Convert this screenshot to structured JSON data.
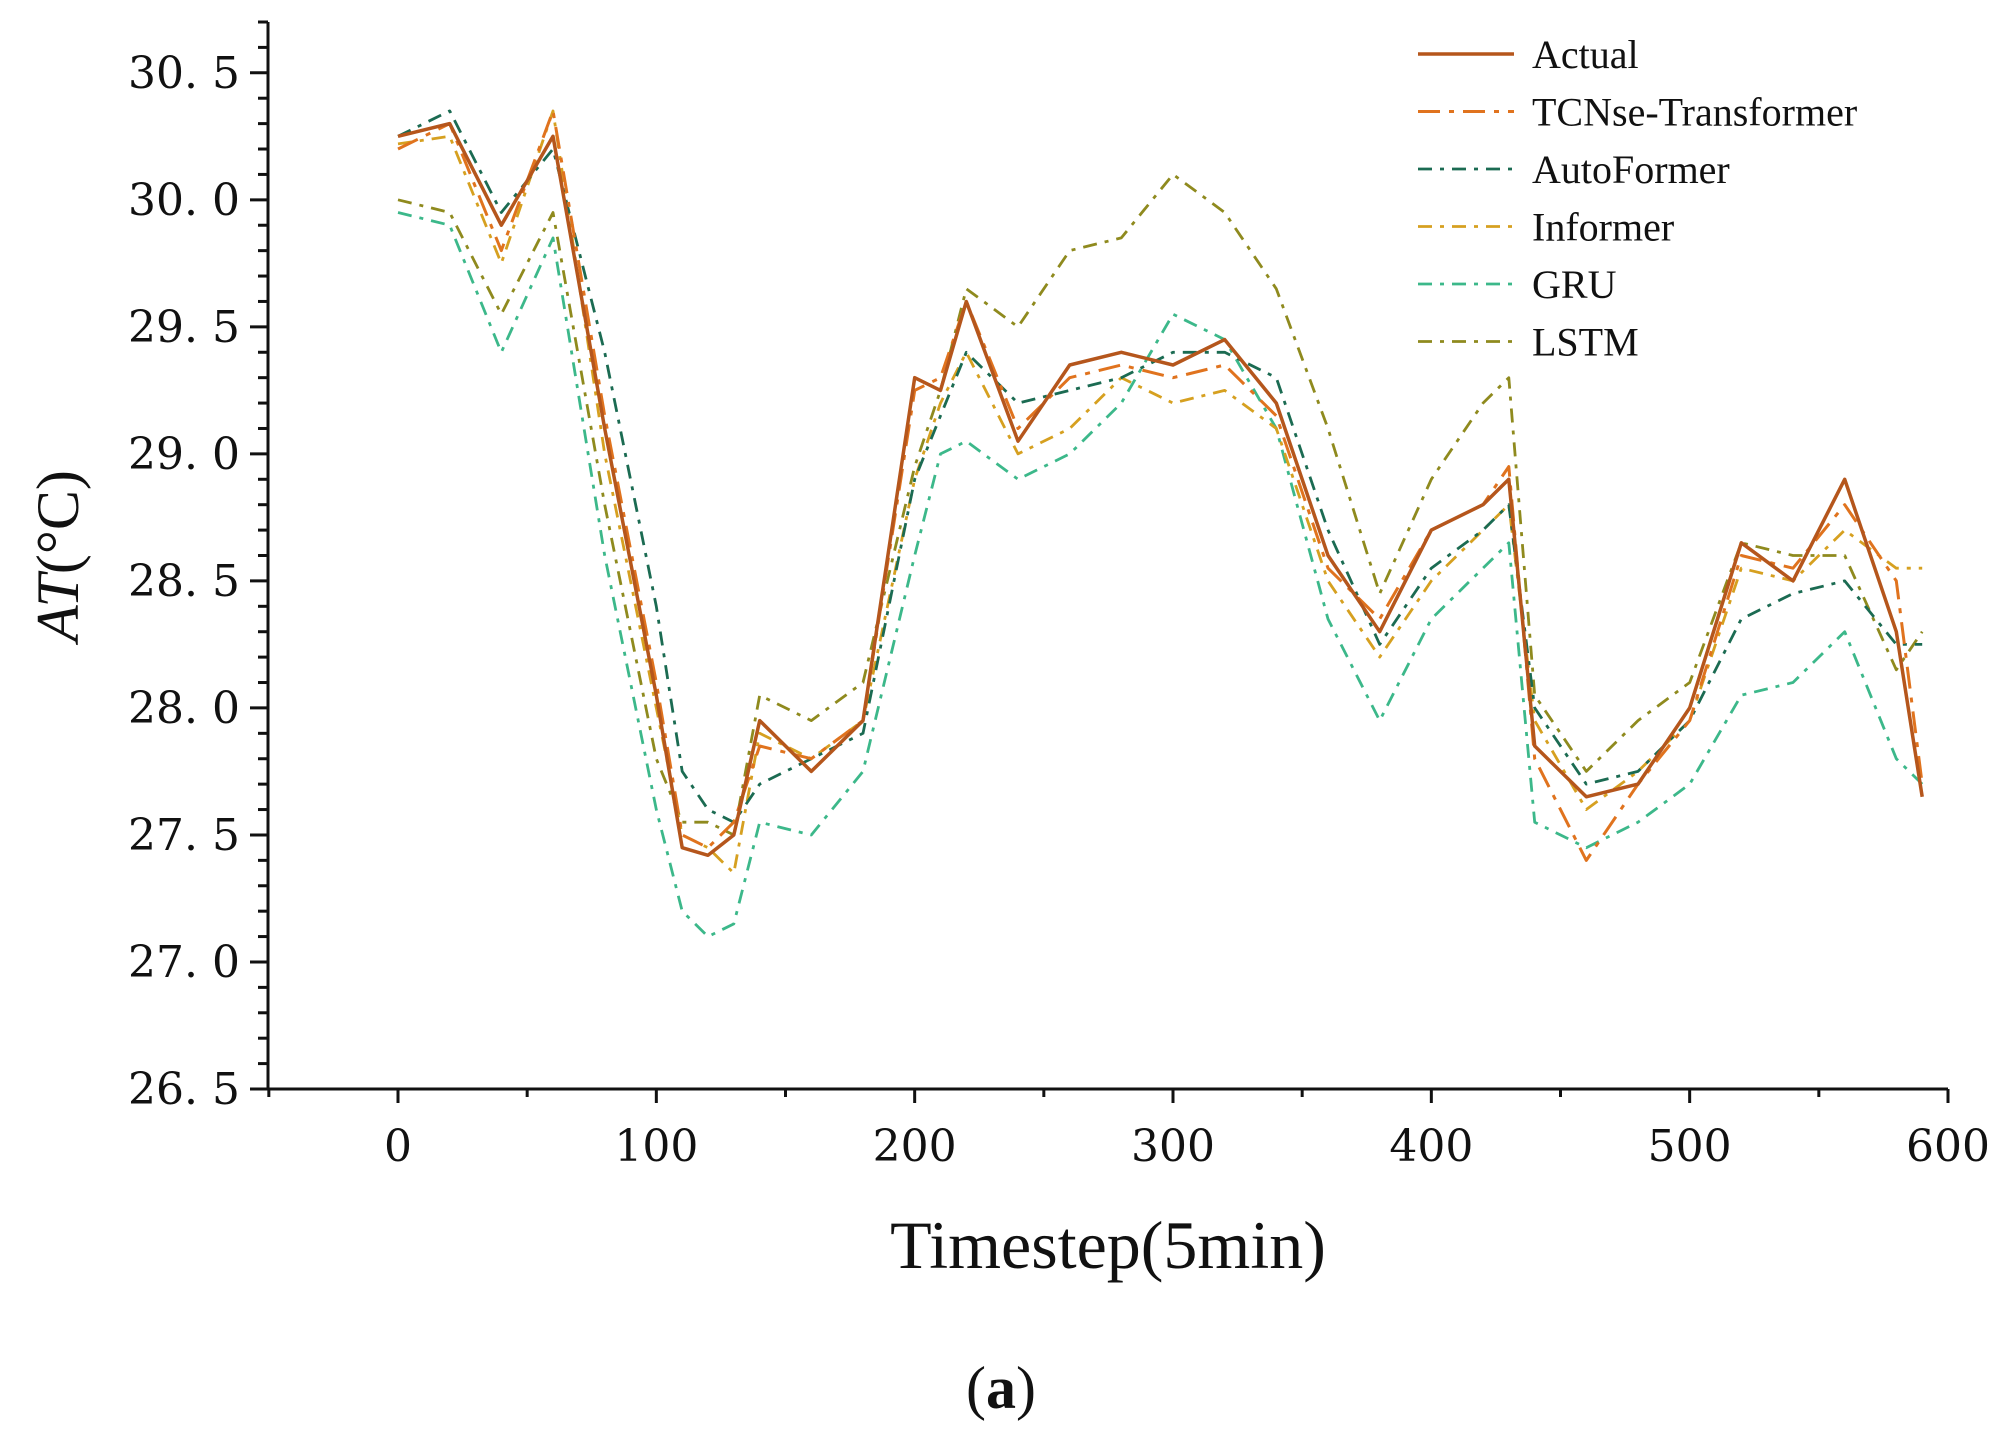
{
  "panel_label": {
    "open": "(",
    "letter": "a",
    "close": ")"
  },
  "chart_data": {
    "type": "line",
    "title": "",
    "xlabel": "Timestep(5min)",
    "ylabel": "AT(°C)",
    "ylabel_italic": "AT",
    "ylabel_unit": "(°C)",
    "xlim": [
      -50,
      600
    ],
    "ylim": [
      26.5,
      30.7
    ],
    "x_ticks": [
      0,
      100,
      200,
      300,
      400,
      500,
      600
    ],
    "y_ticks": [
      26.5,
      27.0,
      27.5,
      28.0,
      28.5,
      29.0,
      29.5,
      30.0,
      30.5
    ],
    "y_tick_labels": [
      "26. 5",
      "27. 0",
      "27. 5",
      "28. 0",
      "28. 5",
      "29. 0",
      "29. 5",
      "30. 0",
      "30. 5"
    ],
    "legend_position": "top-right",
    "grid": false,
    "x": [
      0,
      20,
      40,
      60,
      80,
      100,
      110,
      120,
      130,
      140,
      160,
      180,
      200,
      210,
      220,
      240,
      260,
      280,
      300,
      320,
      340,
      360,
      380,
      400,
      420,
      430,
      440,
      460,
      480,
      500,
      520,
      540,
      560,
      580,
      590
    ],
    "series": [
      {
        "name": "Actual",
        "color": "#b5561c",
        "dash": "solid",
        "width": 3.5,
        "values": [
          30.25,
          30.3,
          29.9,
          30.25,
          29.1,
          28.05,
          27.45,
          27.42,
          27.5,
          27.95,
          27.75,
          27.95,
          29.3,
          29.25,
          29.6,
          29.05,
          29.35,
          29.4,
          29.35,
          29.45,
          29.2,
          28.6,
          28.3,
          28.7,
          28.8,
          28.9,
          27.85,
          27.65,
          27.7,
          28.0,
          28.65,
          28.5,
          28.9,
          28.3,
          27.65
        ]
      },
      {
        "name": "TCNse-Transformer",
        "color": "#e0731e",
        "dash": "22 9 5 9",
        "width": 3,
        "values": [
          30.2,
          30.3,
          29.8,
          30.35,
          29.15,
          28.1,
          27.5,
          27.45,
          27.55,
          27.85,
          27.8,
          27.95,
          29.25,
          29.3,
          29.6,
          29.1,
          29.3,
          29.35,
          29.3,
          29.35,
          29.15,
          28.55,
          28.35,
          28.7,
          28.8,
          28.95,
          27.8,
          27.4,
          27.7,
          27.95,
          28.6,
          28.55,
          28.8,
          28.5,
          27.7
        ]
      },
      {
        "name": "AutoFormer",
        "color": "#1b6b52",
        "dash": "14 8 4 8",
        "width": 2.8,
        "values": [
          30.25,
          30.35,
          29.95,
          30.2,
          29.4,
          28.4,
          27.75,
          27.6,
          27.55,
          27.7,
          27.8,
          27.9,
          28.9,
          29.15,
          29.4,
          29.2,
          29.25,
          29.3,
          29.4,
          29.4,
          29.3,
          28.7,
          28.25,
          28.55,
          28.7,
          28.8,
          28.0,
          27.7,
          27.75,
          27.95,
          28.35,
          28.45,
          28.5,
          28.25,
          28.25
        ]
      },
      {
        "name": "Informer",
        "color": "#d6a020",
        "dash": "14 8 4 8",
        "width": 2.8,
        "values": [
          30.22,
          30.25,
          29.75,
          30.35,
          29.0,
          28.0,
          27.5,
          27.45,
          27.35,
          27.9,
          27.8,
          27.95,
          28.9,
          29.2,
          29.4,
          29.0,
          29.1,
          29.3,
          29.2,
          29.25,
          29.1,
          28.5,
          28.2,
          28.5,
          28.7,
          28.8,
          27.95,
          27.6,
          27.75,
          27.95,
          28.55,
          28.5,
          28.7,
          28.55,
          28.55
        ]
      },
      {
        "name": "GRU",
        "color": "#3cb88a",
        "dash": "14 8 4 8",
        "width": 2.8,
        "values": [
          29.95,
          29.9,
          29.4,
          29.85,
          28.6,
          27.6,
          27.2,
          27.1,
          27.15,
          27.55,
          27.5,
          27.75,
          28.6,
          29.0,
          29.05,
          28.9,
          29.0,
          29.2,
          29.55,
          29.45,
          29.1,
          28.35,
          27.95,
          28.35,
          28.55,
          28.65,
          27.55,
          27.45,
          27.55,
          27.7,
          28.05,
          28.1,
          28.3,
          27.8,
          27.7
        ]
      },
      {
        "name": "LSTM",
        "color": "#8f8a1e",
        "dash": "14 8 4 8",
        "width": 2.8,
        "values": [
          30.0,
          29.95,
          29.55,
          29.95,
          28.8,
          27.8,
          27.55,
          27.55,
          27.5,
          28.05,
          27.95,
          28.1,
          28.95,
          29.25,
          29.65,
          29.5,
          29.8,
          29.85,
          30.1,
          29.95,
          29.65,
          29.1,
          28.45,
          28.9,
          29.2,
          29.3,
          28.05,
          27.75,
          27.95,
          28.1,
          28.65,
          28.6,
          28.6,
          28.15,
          28.3
        ]
      }
    ]
  }
}
